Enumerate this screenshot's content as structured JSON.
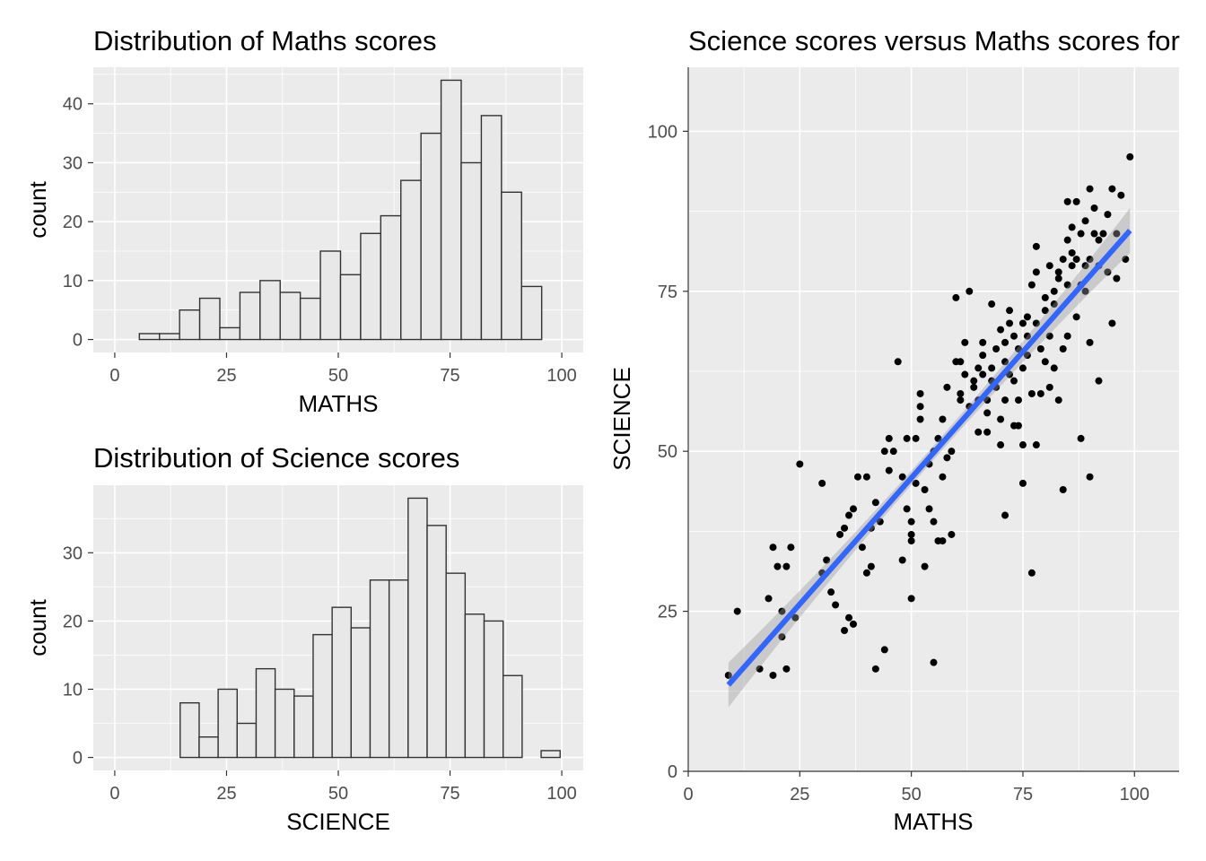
{
  "chart_data": [
    {
      "type": "bar",
      "title": "Distribution of Maths scores",
      "xlabel": "MATHS",
      "ylabel": "count",
      "xlim": [
        -4.8,
        104.8
      ],
      "ylim": [
        -2.2,
        46.2
      ],
      "xticks": [
        0,
        25,
        50,
        75,
        100
      ],
      "xtick_labels": [
        "0",
        "25",
        "50",
        "75",
        "100"
      ],
      "yticks": [
        0,
        10,
        20,
        30,
        40
      ],
      "ytick_labels": [
        "0",
        "10",
        "20",
        "30",
        "40"
      ],
      "binwidth": 4.5,
      "bin_centers": [
        7.75,
        12.25,
        16.75,
        21.25,
        25.75,
        30.25,
        34.75,
        39.25,
        43.75,
        48.25,
        52.75,
        57.25,
        61.75,
        66.25,
        70.75,
        75.25,
        79.75,
        84.25,
        88.75,
        93.25,
        97.75
      ],
      "values": [
        1,
        1,
        5,
        7,
        2,
        8,
        10,
        8,
        7,
        15,
        11,
        18,
        21,
        27,
        35,
        44,
        30,
        38,
        25,
        9,
        0
      ],
      "grid": true
    },
    {
      "type": "bar",
      "title": "Distribution of Science scores",
      "xlabel": "SCIENCE",
      "ylabel": "count",
      "xlim": [
        -4.8,
        104.8
      ],
      "ylim": [
        -1.9,
        39.9
      ],
      "xticks": [
        0,
        25,
        50,
        75,
        100
      ],
      "xtick_labels": [
        "0",
        "25",
        "50",
        "75",
        "100"
      ],
      "yticks": [
        0,
        10,
        20,
        30
      ],
      "ytick_labels": [
        "0",
        "10",
        "20",
        "30"
      ],
      "binwidth": 4.25,
      "bin_centers": [
        16.75,
        21.0,
        25.25,
        29.5,
        33.75,
        38.0,
        42.25,
        46.5,
        50.75,
        55.0,
        59.25,
        63.5,
        67.75,
        72.0,
        76.25,
        80.5,
        84.75,
        89.0,
        93.25,
        97.5
      ],
      "values": [
        8,
        3,
        10,
        5,
        13,
        10,
        9,
        18,
        22,
        19,
        26,
        26,
        38,
        34,
        27,
        21,
        20,
        12,
        0,
        1
      ],
      "grid": true
    },
    {
      "type": "scatter",
      "title": "Science scores versus Maths scores for",
      "xlabel": "MATHS",
      "ylabel": "SCIENCE",
      "xlim": [
        0,
        110
      ],
      "ylim": [
        0,
        110
      ],
      "xticks": [
        0,
        25,
        50,
        75,
        100
      ],
      "xtick_labels": [
        "0",
        "25",
        "50",
        "75",
        "100"
      ],
      "yticks": [
        0,
        25,
        50,
        75,
        100
      ],
      "ytick_labels": [
        "0",
        "25",
        "50",
        "75",
        "100"
      ],
      "fit_line": {
        "method": "lm",
        "x": [
          9,
          99
        ],
        "y": [
          13.5,
          84.5
        ],
        "se": true,
        "color": "#3366ff"
      },
      "points": [
        [
          9,
          15
        ],
        [
          11,
          25
        ],
        [
          16,
          16
        ],
        [
          18,
          27
        ],
        [
          19,
          15
        ],
        [
          19,
          35
        ],
        [
          20,
          32
        ],
        [
          21,
          21
        ],
        [
          21,
          25
        ],
        [
          22,
          16
        ],
        [
          22,
          32
        ],
        [
          23,
          35
        ],
        [
          24,
          24
        ],
        [
          25,
          48
        ],
        [
          30,
          45
        ],
        [
          30,
          31
        ],
        [
          31,
          33
        ],
        [
          32,
          28
        ],
        [
          33,
          26
        ],
        [
          34,
          37
        ],
        [
          35,
          22
        ],
        [
          35,
          38
        ],
        [
          36,
          40
        ],
        [
          36,
          24
        ],
        [
          37,
          41
        ],
        [
          37,
          23
        ],
        [
          38,
          46
        ],
        [
          39,
          35
        ],
        [
          40,
          31
        ],
        [
          40,
          46
        ],
        [
          41,
          32
        ],
        [
          41,
          38
        ],
        [
          42,
          16
        ],
        [
          42,
          42
        ],
        [
          43,
          39
        ],
        [
          44,
          19
        ],
        [
          44,
          50
        ],
        [
          45,
          52
        ],
        [
          45,
          47
        ],
        [
          46,
          50
        ],
        [
          47,
          64
        ],
        [
          48,
          46
        ],
        [
          48,
          33
        ],
        [
          49,
          41
        ],
        [
          49,
          52
        ],
        [
          50,
          37
        ],
        [
          50,
          39
        ],
        [
          50,
          27
        ],
        [
          50,
          36
        ],
        [
          51,
          45
        ],
        [
          51,
          52
        ],
        [
          52,
          59
        ],
        [
          52,
          55
        ],
        [
          52,
          57
        ],
        [
          53,
          32
        ],
        [
          53,
          44
        ],
        [
          54,
          41
        ],
        [
          54,
          48
        ],
        [
          55,
          50
        ],
        [
          55,
          17
        ],
        [
          55,
          39
        ],
        [
          56,
          36
        ],
        [
          56,
          52
        ],
        [
          57,
          36
        ],
        [
          57,
          46
        ],
        [
          57,
          55
        ],
        [
          58,
          49
        ],
        [
          58,
          60
        ],
        [
          59,
          37
        ],
        [
          59,
          50
        ],
        [
          60,
          64
        ],
        [
          60,
          74
        ],
        [
          61,
          64
        ],
        [
          61,
          58
        ],
        [
          61,
          59
        ],
        [
          62,
          62
        ],
        [
          62,
          67
        ],
        [
          63,
          57
        ],
        [
          63,
          75
        ],
        [
          64,
          60
        ],
        [
          64,
          61
        ],
        [
          65,
          63
        ],
        [
          65,
          53
        ],
        [
          65,
          58
        ],
        [
          66,
          67
        ],
        [
          66,
          62
        ],
        [
          66,
          65
        ],
        [
          67,
          53
        ],
        [
          67,
          56
        ],
        [
          67,
          58
        ],
        [
          68,
          63
        ],
        [
          68,
          61
        ],
        [
          68,
          73
        ],
        [
          69,
          60
        ],
        [
          69,
          66
        ],
        [
          70,
          55
        ],
        [
          70,
          69
        ],
        [
          70,
          51
        ],
        [
          71,
          58
        ],
        [
          71,
          64
        ],
        [
          71,
          40
        ],
        [
          71,
          67
        ],
        [
          72,
          70
        ],
        [
          72,
          62
        ],
        [
          72,
          72
        ],
        [
          73,
          54
        ],
        [
          73,
          68
        ],
        [
          73,
          61
        ],
        [
          74,
          58
        ],
        [
          74,
          66
        ],
        [
          74,
          54
        ],
        [
          75,
          70
        ],
        [
          75,
          45
        ],
        [
          75,
          51
        ],
        [
          75,
          63
        ],
        [
          76,
          65
        ],
        [
          76,
          68
        ],
        [
          76,
          71
        ],
        [
          77,
          76
        ],
        [
          77,
          59
        ],
        [
          77,
          31
        ],
        [
          78,
          78
        ],
        [
          78,
          70
        ],
        [
          78,
          82
        ],
        [
          78,
          51
        ],
        [
          79,
          66
        ],
        [
          79,
          59
        ],
        [
          80,
          74
        ],
        [
          80,
          64
        ],
        [
          80,
          72
        ],
        [
          81,
          68
        ],
        [
          81,
          79
        ],
        [
          81,
          60
        ],
        [
          82,
          63
        ],
        [
          82,
          73
        ],
        [
          82,
          75
        ],
        [
          83,
          77
        ],
        [
          83,
          58
        ],
        [
          83,
          78
        ],
        [
          84,
          44
        ],
        [
          84,
          80
        ],
        [
          84,
          66
        ],
        [
          85,
          76
        ],
        [
          85,
          83
        ],
        [
          85,
          89
        ],
        [
          85,
          68
        ],
        [
          86,
          79
        ],
        [
          86,
          81
        ],
        [
          86,
          85
        ],
        [
          87,
          80
        ],
        [
          87,
          71
        ],
        [
          87,
          89
        ],
        [
          88,
          76
        ],
        [
          88,
          84
        ],
        [
          88,
          52
        ],
        [
          89,
          75
        ],
        [
          89,
          86
        ],
        [
          89,
          79
        ],
        [
          90,
          46
        ],
        [
          90,
          67
        ],
        [
          90,
          80
        ],
        [
          90,
          91
        ],
        [
          91,
          88
        ],
        [
          91,
          84
        ],
        [
          92,
          61
        ],
        [
          92,
          79
        ],
        [
          92,
          83
        ],
        [
          93,
          84
        ],
        [
          94,
          78
        ],
        [
          94,
          87
        ],
        [
          95,
          70
        ],
        [
          95,
          91
        ],
        [
          96,
          84
        ],
        [
          96,
          77
        ],
        [
          97,
          90
        ],
        [
          98,
          80
        ],
        [
          99,
          96
        ]
      ],
      "grid": true
    }
  ]
}
